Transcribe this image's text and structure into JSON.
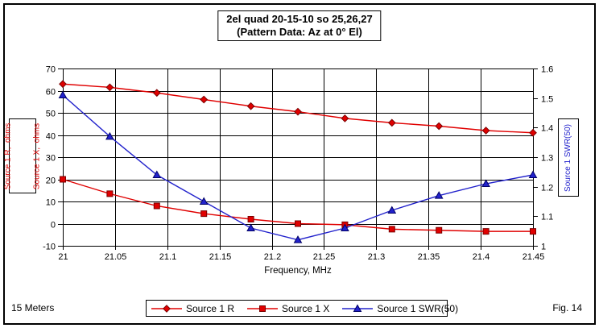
{
  "window": {
    "footer_left": "15 Meters",
    "footer_right": "Fig. 14"
  },
  "chart_data": {
    "type": "line",
    "title": "2el quad 20-15-10 so 25,26,27",
    "subtitle": "(Pattern Data: Az at 0° El)",
    "xlabel": "Frequency, MHz",
    "xlim": [
      21,
      21.45
    ],
    "grid": true,
    "legend_position": "bottom",
    "x_tick_labels": [
      "21",
      "21.05",
      "21.1",
      "21.15",
      "21.2",
      "21.25",
      "21.3",
      "21.35",
      "21.4",
      "21.45"
    ],
    "left_axis": {
      "label_line1": "Source 1 R,  ohms",
      "label_line2": "Source 1 X,  ohms",
      "min": -10,
      "max": 70,
      "ticks": [
        70,
        60,
        50,
        40,
        30,
        20,
        10,
        0,
        -10
      ],
      "tick_labels": [
        "70",
        "60",
        "50",
        "40",
        "30",
        "20",
        "10",
        "0",
        "-10"
      ],
      "color": "#e00000"
    },
    "right_axis": {
      "label": "Source 1 SWR(50)",
      "min": 1,
      "max": 1.6,
      "ticks": [
        1.6,
        1.5,
        1.4,
        1.3,
        1.2,
        1.1,
        1
      ],
      "tick_labels": [
        "1.6",
        "1.5",
        "1.4",
        "1.3",
        "1.2",
        "1.1",
        "1"
      ],
      "color": "#2222cc"
    },
    "x": [
      21,
      21.045,
      21.09,
      21.135,
      21.18,
      21.225,
      21.27,
      21.315,
      21.36,
      21.405,
      21.45
    ],
    "series": [
      {
        "name": "Source 1 R",
        "axis": "left",
        "marker": "diamond",
        "color": "#e00000",
        "marker_fill": "#e00000",
        "marker_stroke": "#7a0000",
        "values": [
          63,
          61.5,
          59,
          56,
          53,
          50.5,
          47.5,
          45.5,
          44,
          42,
          41
        ]
      },
      {
        "name": "Source 1 X",
        "axis": "left",
        "marker": "square",
        "color": "#e00000",
        "marker_fill": "#e00000",
        "marker_stroke": "#7a0000",
        "values": [
          20,
          13.5,
          8,
          4.5,
          2,
          0,
          -0.5,
          -2.5,
          -3,
          -3.5,
          -3.5
        ]
      },
      {
        "name": "Source 1 SWR(50)",
        "axis": "right",
        "marker": "triangle",
        "color": "#2222cc",
        "marker_fill": "#2222cc",
        "marker_stroke": "#000066",
        "values": [
          1.51,
          1.37,
          1.24,
          1.15,
          1.06,
          1.02,
          1.06,
          1.12,
          1.17,
          1.21,
          1.24
        ]
      }
    ]
  }
}
